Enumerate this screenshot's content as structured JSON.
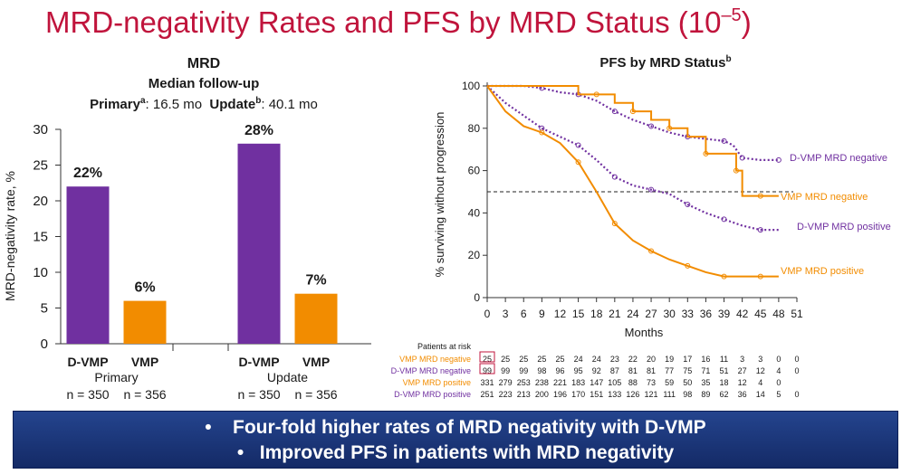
{
  "slide": {
    "title": "MRD-negativity Rates and PFS by MRD Status (10",
    "title_exp": "–5",
    "title_close": ")"
  },
  "colors": {
    "title": "#c0143c",
    "d_vmp": "#7030a0",
    "vmp": "#f28c00",
    "banner": "#1f3a7a"
  },
  "bar_chart": {
    "heading": "MRD",
    "sub_heading": "Median follow-up",
    "followup_primary_label": "Primary",
    "followup_primary_sup": "a",
    "followup_primary_value": ": 16.5 mo",
    "followup_update_label": "Update",
    "followup_update_sup": "b",
    "followup_update_value": ": 40.1 mo",
    "ylabel": "MRD-negativity rate, %",
    "groups": [
      {
        "name": "Primary",
        "bars": [
          {
            "label": "D-VMP",
            "n": "n = 350"
          },
          {
            "label": "VMP",
            "n": "n = 356"
          }
        ]
      },
      {
        "name": "Update",
        "bars": [
          {
            "label": "D-VMP",
            "n": "n = 350"
          },
          {
            "label": "VMP",
            "n": "n = 356"
          }
        ]
      }
    ]
  },
  "km_chart": {
    "title": "PFS by MRD Status",
    "title_sup": "b",
    "ylabel": "% surviving without progression",
    "xlabel": "Months",
    "risk_header": "Patients at risk",
    "risk_table": [
      {
        "label": "VMP MRD negative",
        "values": [
          "25",
          "25",
          "25",
          "25",
          "25",
          "24",
          "24",
          "23",
          "22",
          "20",
          "19",
          "17",
          "16",
          "11",
          "3",
          "3",
          "0",
          "0"
        ]
      },
      {
        "label": "D-VMP MRD negative",
        "values": [
          "99",
          "99",
          "99",
          "98",
          "96",
          "95",
          "92",
          "87",
          "81",
          "81",
          "77",
          "75",
          "71",
          "51",
          "27",
          "12",
          "4",
          "0"
        ]
      },
      {
        "label": "VMP MRD positive",
        "values": [
          "331",
          "279",
          "253",
          "238",
          "221",
          "183",
          "147",
          "105",
          "88",
          "73",
          "59",
          "50",
          "35",
          "18",
          "12",
          "4",
          "0",
          ""
        ]
      },
      {
        "label": "D-VMP MRD positive",
        "values": [
          "251",
          "223",
          "213",
          "200",
          "196",
          "170",
          "151",
          "133",
          "126",
          "121",
          "111",
          "98",
          "89",
          "62",
          "36",
          "14",
          "5",
          "0"
        ]
      }
    ]
  },
  "banner": {
    "line1": "Four-fold higher rates of MRD negativity with D-VMP",
    "line2": "Improved PFS in patients with MRD negativity",
    "bullet": "•"
  },
  "chart_data": [
    {
      "type": "bar",
      "title": "MRD",
      "ylabel": "MRD-negativity rate, %",
      "ylim": [
        0,
        30
      ],
      "yticks": [
        0,
        5,
        10,
        15,
        20,
        25,
        30
      ],
      "categories": [
        "Primary",
        "Update"
      ],
      "series": [
        {
          "name": "D-VMP",
          "color": "#7030a0",
          "values": [
            22,
            28
          ],
          "labels": [
            "22%",
            "28%"
          ]
        },
        {
          "name": "VMP",
          "color": "#f28c00",
          "values": [
            6,
            7
          ],
          "labels": [
            "6%",
            "7%"
          ]
        }
      ],
      "legend": "none",
      "grid": false
    },
    {
      "type": "line",
      "title": "PFS by MRD Status",
      "xlabel": "Months",
      "ylabel": "% surviving without progression",
      "xlim": [
        0,
        51
      ],
      "ylim": [
        0,
        100
      ],
      "xticks": [
        0,
        3,
        6,
        9,
        12,
        15,
        18,
        21,
        24,
        27,
        30,
        33,
        36,
        39,
        42,
        45,
        48,
        51
      ],
      "yticks": [
        0,
        20,
        40,
        60,
        80,
        100
      ],
      "reference_line_y": 50,
      "grid": false,
      "series": [
        {
          "name": "D-VMP MRD negative",
          "color": "#7030a0",
          "style": "dotted",
          "x": [
            0,
            3,
            6,
            9,
            12,
            15,
            18,
            21,
            24,
            27,
            30,
            33,
            36,
            39,
            40.5,
            42,
            45,
            48
          ],
          "y": [
            100,
            100,
            100,
            99,
            97,
            96,
            93,
            88,
            84,
            81,
            78,
            76,
            75,
            74,
            72,
            66,
            65,
            65
          ]
        },
        {
          "name": "VMP MRD negative",
          "color": "#f28c00",
          "style": "step",
          "x": [
            0,
            12,
            15,
            18,
            21,
            24,
            27,
            30,
            33,
            36,
            38,
            41,
            42,
            45,
            48
          ],
          "y": [
            100,
            100,
            96,
            96,
            92,
            88,
            84,
            80,
            76,
            68,
            68,
            60,
            48,
            48,
            48
          ]
        },
        {
          "name": "D-VMP MRD positive",
          "color": "#7030a0",
          "style": "dotted",
          "x": [
            0,
            3,
            6,
            9,
            12,
            15,
            18,
            21,
            24,
            27,
            30,
            33,
            36,
            39,
            42,
            45,
            48
          ],
          "y": [
            100,
            92,
            86,
            80,
            76,
            72,
            65,
            57,
            53,
            51,
            49,
            44,
            40,
            37,
            34,
            32,
            32
          ]
        },
        {
          "name": "VMP MRD positive",
          "color": "#f28c00",
          "style": "solid",
          "x": [
            0,
            3,
            6,
            9,
            12,
            15,
            18,
            21,
            24,
            27,
            30,
            33,
            36,
            39,
            42,
            45,
            48
          ],
          "y": [
            100,
            88,
            81,
            78,
            73,
            64,
            50,
            35,
            27,
            22,
            18,
            15,
            12,
            10,
            10,
            10,
            10
          ]
        }
      ]
    }
  ]
}
